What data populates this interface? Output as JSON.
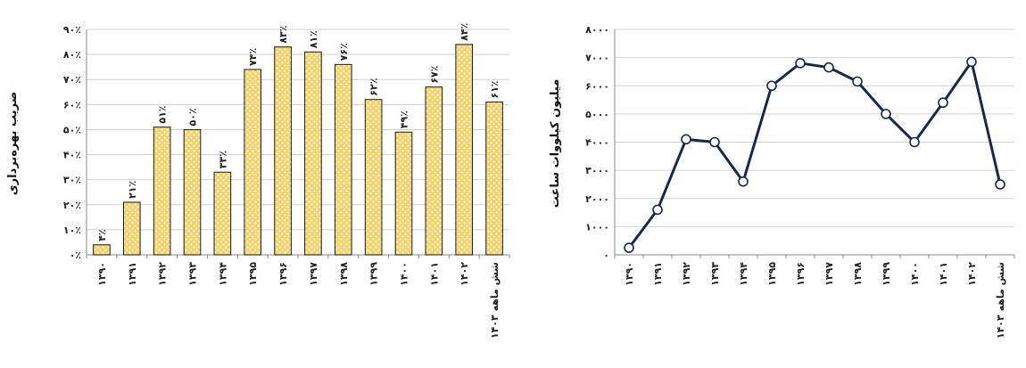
{
  "chart_data": [
    {
      "type": "bar",
      "ylabel": "ضریب بهره‌برداری",
      "ylim": [
        0,
        90
      ],
      "yticks": [
        "۰٪",
        "۱۰٪",
        "۲۰٪",
        "۳۰٪",
        "۴۰٪",
        "۵۰٪",
        "۶۰٪",
        "۷۰٪",
        "۸۰٪",
        "۹۰٪"
      ],
      "grid": true,
      "categories": [
        "۱۳۹۰",
        "۱۳۹۱",
        "۱۳۹۲",
        "۱۳۹۳",
        "۱۳۹۴",
        "۱۳۹۵",
        "۱۳۹۶",
        "۱۳۹۷",
        "۱۳۹۸",
        "۱۳۹۹",
        "۱۴۰۰",
        "۱۴۰۱",
        "۱۴۰۲",
        "شش ماهه ۱۴۰۳"
      ],
      "values": [
        4,
        21,
        51,
        50,
        33,
        74,
        83,
        81,
        76,
        62,
        49,
        67,
        84,
        61
      ],
      "data_labels": [
        "۴٪",
        "۲۱٪",
        "۵۱٪",
        "۵۰٪",
        "۳۳٪",
        "۷۴٪",
        "۸۳٪",
        "۸۱٪",
        "۷۶٪",
        "۶۲٪",
        "۴۹٪",
        "۶۷٪",
        "۸۴٪",
        "۶۱٪"
      ],
      "colors": {
        "bar_fill": "#f3d36b",
        "bar_pattern": "#ffffff",
        "bar_stroke": "#1a1a1a"
      }
    },
    {
      "type": "line",
      "ylabel": "میلیون کیلووات ساعت",
      "ylim": [
        0,
        8000
      ],
      "yticks": [
        "۰",
        "۱۰۰۰",
        "۲۰۰۰",
        "۳۰۰۰",
        "۴۰۰۰",
        "۵۰۰۰",
        "۶۰۰۰",
        "۷۰۰۰",
        "۸۰۰۰"
      ],
      "grid": true,
      "categories": [
        "۱۳۹۰",
        "۱۳۹۱",
        "۱۳۹۲",
        "۱۳۹۳",
        "۱۳۹۴",
        "۱۳۹۵",
        "۱۳۹۶",
        "۱۳۹۷",
        "۱۳۹۸",
        "۱۳۹۹",
        "۱۴۰۰",
        "۱۴۰۱",
        "۱۴۰۲",
        "شش ماهه ۱۴۰۳"
      ],
      "values": [
        250,
        1600,
        4100,
        4000,
        2600,
        6000,
        6800,
        6650,
        6150,
        5000,
        4000,
        5400,
        6850,
        2500
      ],
      "colors": {
        "line": "#17294d",
        "marker_fill": "#ffffff",
        "marker_stroke": "#17294d"
      }
    }
  ]
}
